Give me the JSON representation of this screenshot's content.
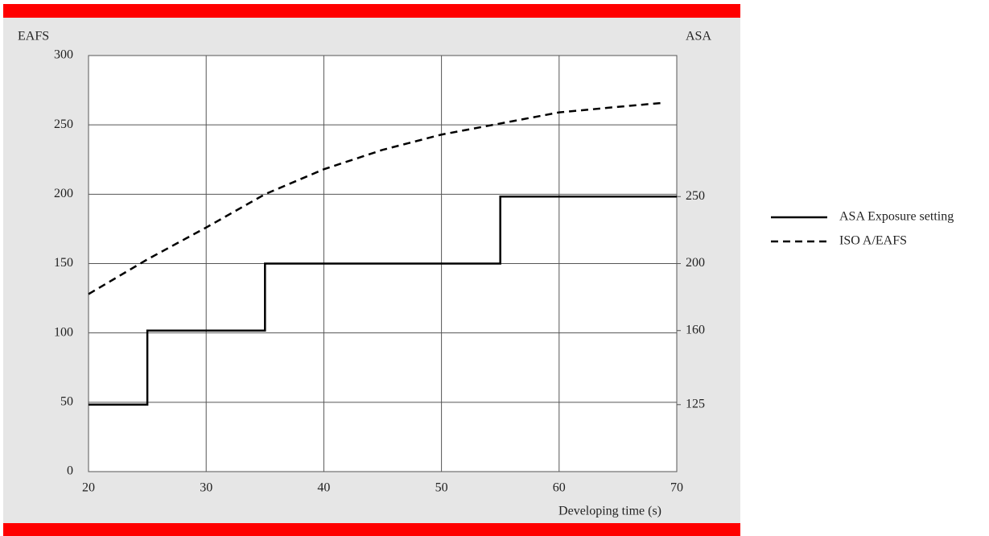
{
  "chart_data": {
    "type": "line",
    "y_label": "EAFS",
    "y2_label": "ASA",
    "x_label": "Developing time (s)",
    "xlim": [
      20,
      70
    ],
    "xticks": [
      20,
      30,
      40,
      50,
      60,
      70
    ],
    "ylim": [
      0,
      300
    ],
    "yticks": [
      0,
      50,
      100,
      150,
      200,
      250,
      300
    ],
    "y2lim": [
      100,
      400
    ],
    "y2scale": "log",
    "y2ticks": [
      125,
      160,
      200,
      250
    ],
    "grid": true,
    "legend": "right",
    "series": [
      {
        "name": "ASA Exposure setting",
        "color": "#000000",
        "dash": false,
        "step": "post",
        "axis": "y2",
        "x": [
          20,
          25,
          35,
          55,
          70
        ],
        "values": [
          125,
          160,
          200,
          250,
          250
        ]
      },
      {
        "name": "ISO A/EAFS",
        "color": "#000000",
        "dash": true,
        "step": "none",
        "axis": "y",
        "x": [
          20,
          25,
          30,
          35,
          40,
          45,
          50,
          55,
          60,
          65,
          69
        ],
        "values": [
          128,
          153,
          176,
          200,
          218,
          232,
          243,
          251,
          259,
          263,
          266
        ]
      }
    ]
  }
}
